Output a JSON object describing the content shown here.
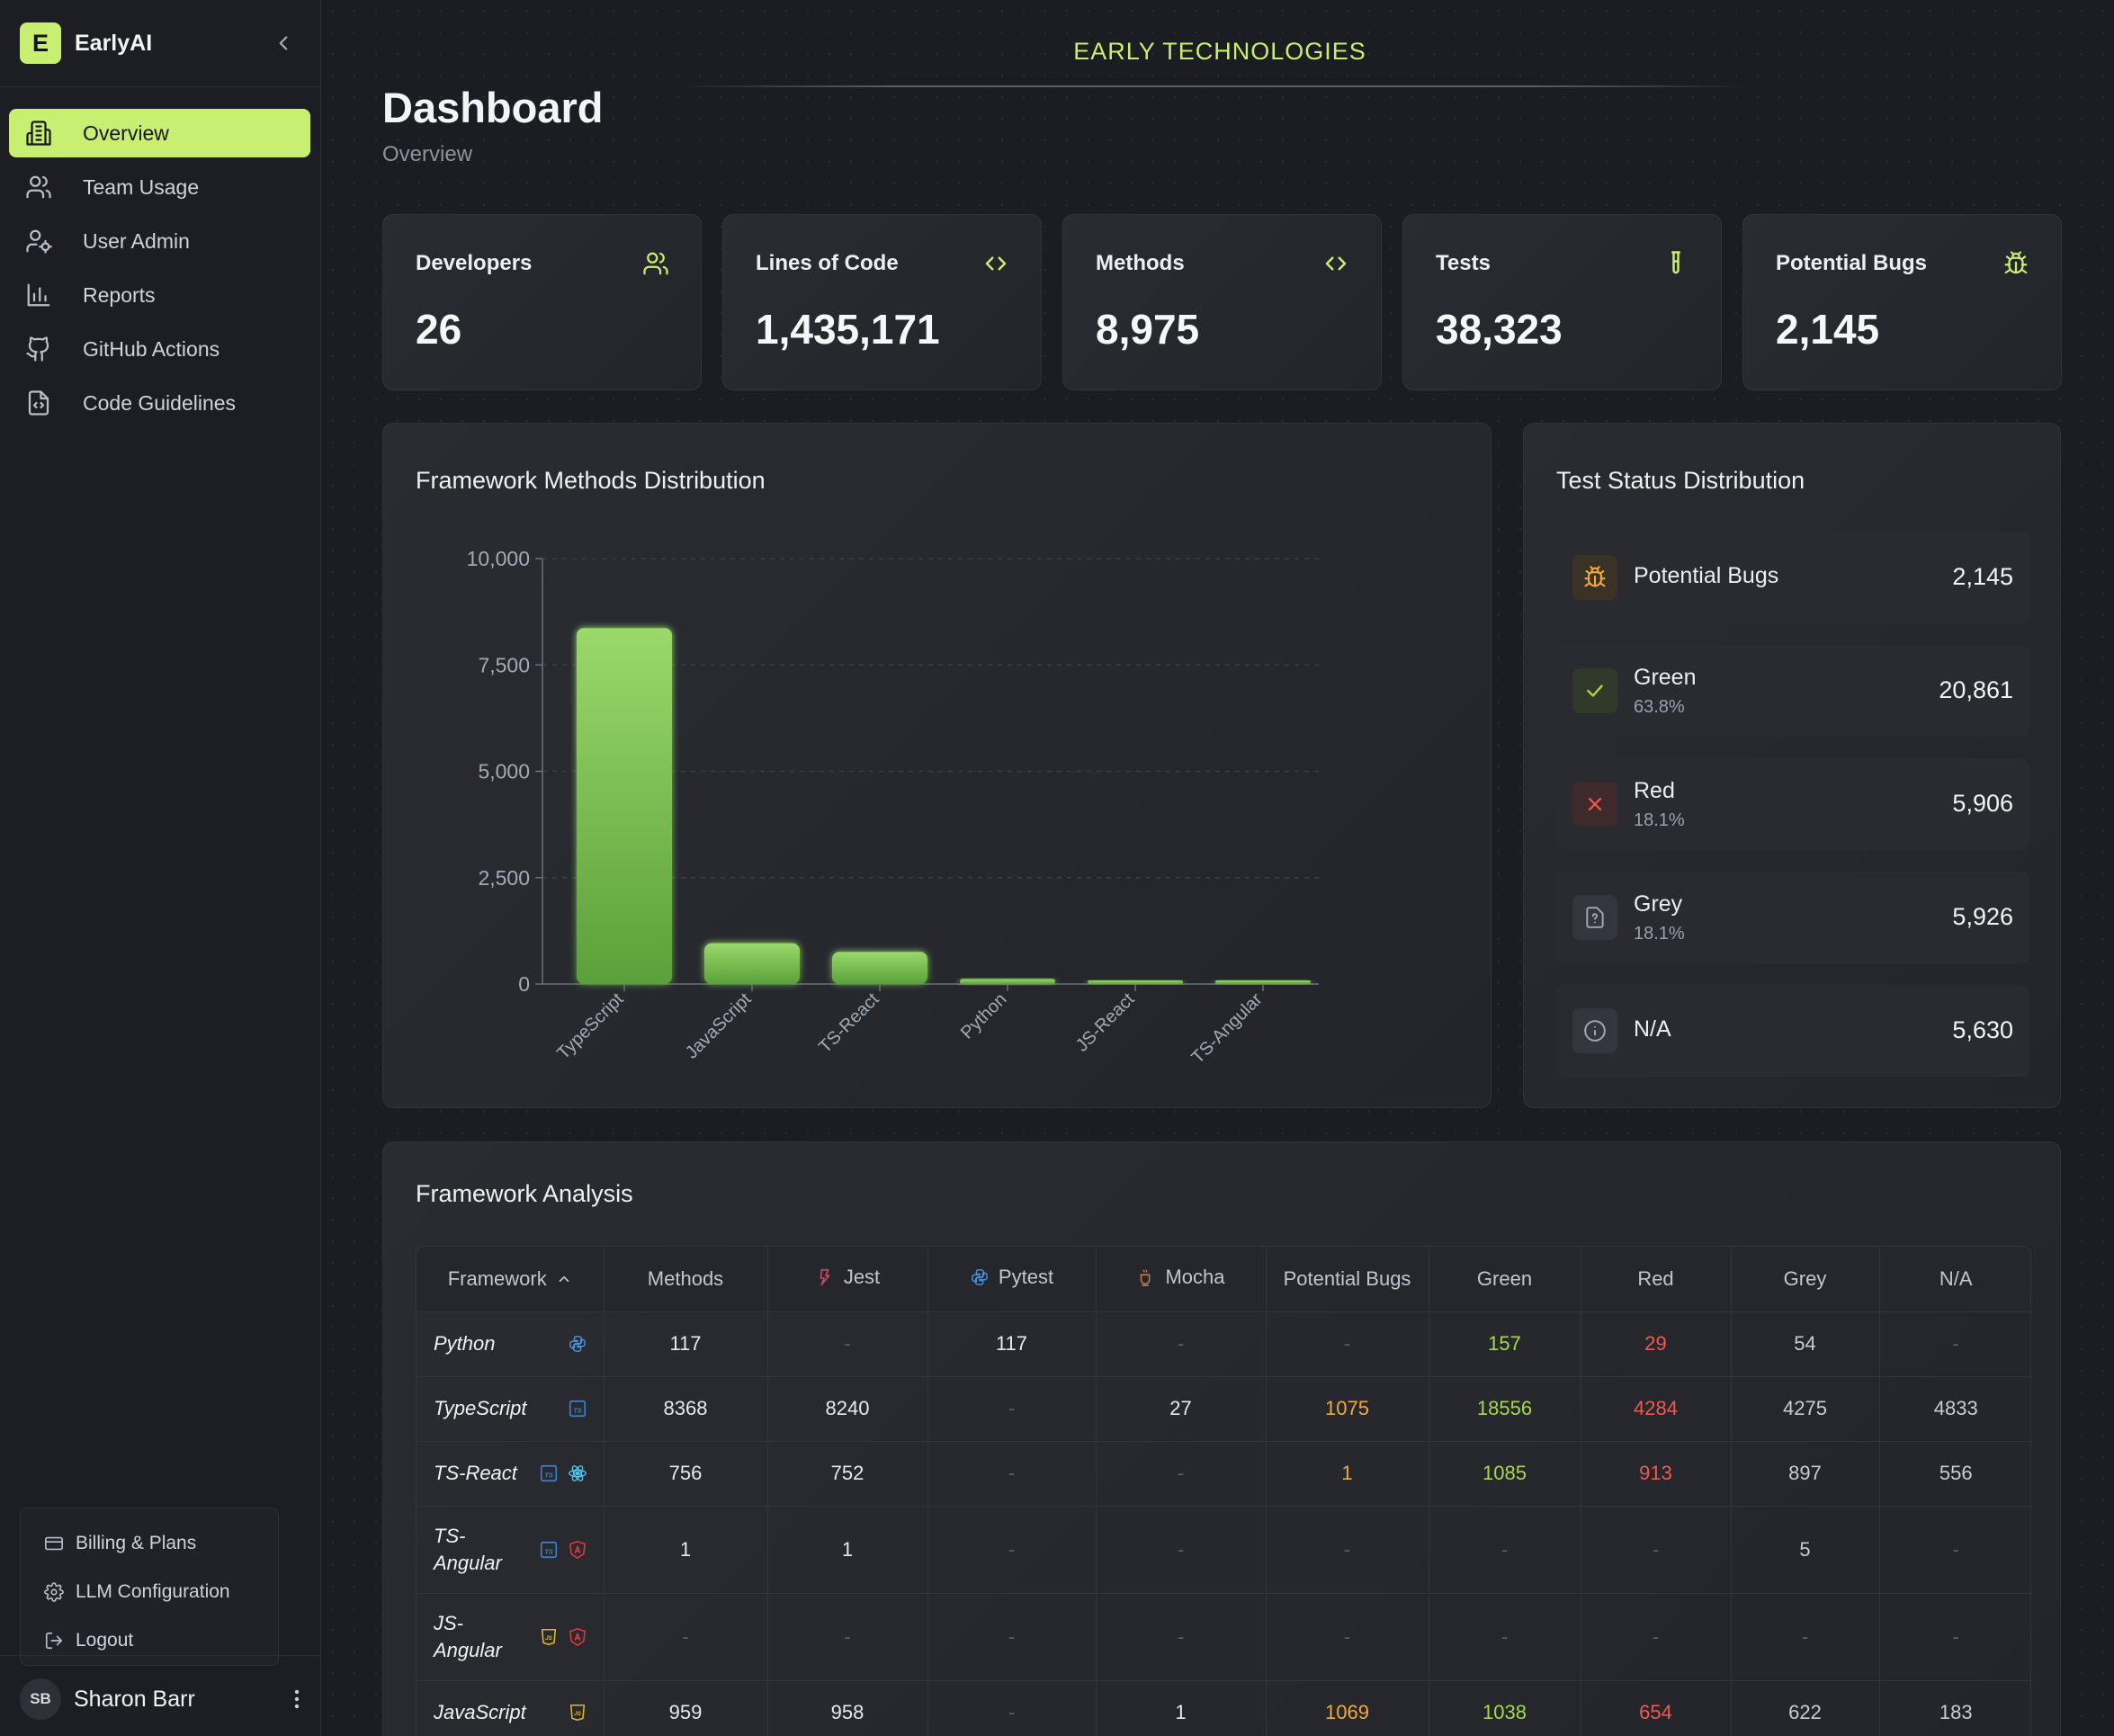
{
  "sidebar": {
    "brand_letter": "E",
    "brand_name": "EarlyAI",
    "nav": [
      {
        "label": "Overview",
        "icon": "building-icon",
        "active": true
      },
      {
        "label": "Team Usage",
        "icon": "users-icon",
        "active": false
      },
      {
        "label": "User Admin",
        "icon": "user-settings-icon",
        "active": false
      },
      {
        "label": "Reports",
        "icon": "bar-chart-icon",
        "active": false
      },
      {
        "label": "GitHub Actions",
        "icon": "github-icon",
        "active": false
      },
      {
        "label": "Code Guidelines",
        "icon": "file-code-icon",
        "active": false
      }
    ],
    "account_menu": [
      {
        "label": "Billing & Plans",
        "icon": "credit-card-icon"
      },
      {
        "label": "LLM Configuration",
        "icon": "gear-icon"
      },
      {
        "label": "Logout",
        "icon": "logout-icon"
      }
    ],
    "user": {
      "initials": "SB",
      "name": "Sharon Barr"
    }
  },
  "header": {
    "org": "EARLY TECHNOLOGIES",
    "title": "Dashboard",
    "subtitle": "Overview"
  },
  "stats": [
    {
      "label": "Developers",
      "value": "26",
      "icon": "users-icon"
    },
    {
      "label": "Lines of Code",
      "value": "1,435,171",
      "icon": "code-icon"
    },
    {
      "label": "Methods",
      "value": "8,975",
      "icon": "code-icon"
    },
    {
      "label": "Tests",
      "value": "38,323",
      "icon": "test-tube-icon"
    },
    {
      "label": "Potential Bugs",
      "value": "2,145",
      "icon": "bug-icon"
    }
  ],
  "chart_panel": {
    "title": "Framework Methods Distribution"
  },
  "chart_data": {
    "type": "bar",
    "title": "Framework Methods Distribution",
    "categories": [
      "TypeScript",
      "JavaScript",
      "TS-React",
      "Python",
      "JS-React",
      "TS-Angular"
    ],
    "values": [
      8368,
      959,
      756,
      117,
      40,
      1
    ],
    "ylim": [
      0,
      10000
    ],
    "yticks": [
      "10,000",
      "7,500",
      "5,000",
      "2,500",
      "0"
    ],
    "ytick_values": [
      10000,
      7500,
      5000,
      2500,
      0
    ],
    "grid": true,
    "color": "#7cc04a"
  },
  "status_panel": {
    "title": "Test Status Distribution",
    "rows": [
      {
        "name": "Potential Bugs",
        "pct": "",
        "count": "2,145",
        "icon": "bug-icon",
        "color": "#f2a93b"
      },
      {
        "name": "Green",
        "pct": "63.8%",
        "count": "20,861",
        "icon": "check-icon",
        "color": "#a6d84a"
      },
      {
        "name": "Red",
        "pct": "18.1%",
        "count": "5,906",
        "icon": "x-icon",
        "color": "#f0594f"
      },
      {
        "name": "Grey",
        "pct": "18.1%",
        "count": "5,926",
        "icon": "file-question-icon",
        "color": "#9aa0a9"
      },
      {
        "name": "N/A",
        "pct": "",
        "count": "5,630",
        "icon": "info-icon",
        "color": "#9aa0a9"
      }
    ]
  },
  "analysis": {
    "title": "Framework Analysis",
    "columns": [
      "Framework",
      "Methods",
      "Jest",
      "Pytest",
      "Mocha",
      "Potential Bugs",
      "Green",
      "Red",
      "Grey",
      "N/A"
    ],
    "rows": [
      {
        "name": "Python",
        "icons": [
          "python-icon"
        ],
        "cells": [
          "117",
          "-",
          "117",
          "-",
          "-",
          "157",
          "29",
          "54",
          "-"
        ]
      },
      {
        "name": "TypeScript",
        "icons": [
          "typescript-icon"
        ],
        "cells": [
          "8368",
          "8240",
          "-",
          "27",
          "1075",
          "18556",
          "4284",
          "4275",
          "4833"
        ]
      },
      {
        "name": "TS-React",
        "icons": [
          "typescript-icon",
          "react-icon"
        ],
        "cells": [
          "756",
          "752",
          "-",
          "-",
          "1",
          "1085",
          "913",
          "897",
          "556"
        ]
      },
      {
        "name": "TS-\nAngular",
        "icons": [
          "typescript-icon",
          "angular-icon"
        ],
        "cells": [
          "1",
          "1",
          "-",
          "-",
          "-",
          "-",
          "-",
          "5",
          "-"
        ]
      },
      {
        "name": "JS-\nAngular",
        "icons": [
          "javascript-icon",
          "angular-icon"
        ],
        "cells": [
          "-",
          "-",
          "-",
          "-",
          "-",
          "-",
          "-",
          "-",
          "-"
        ]
      },
      {
        "name": "JavaScript",
        "icons": [
          "javascript-icon"
        ],
        "cells": [
          "959",
          "958",
          "-",
          "1",
          "1069",
          "1038",
          "654",
          "622",
          "183"
        ]
      }
    ]
  }
}
